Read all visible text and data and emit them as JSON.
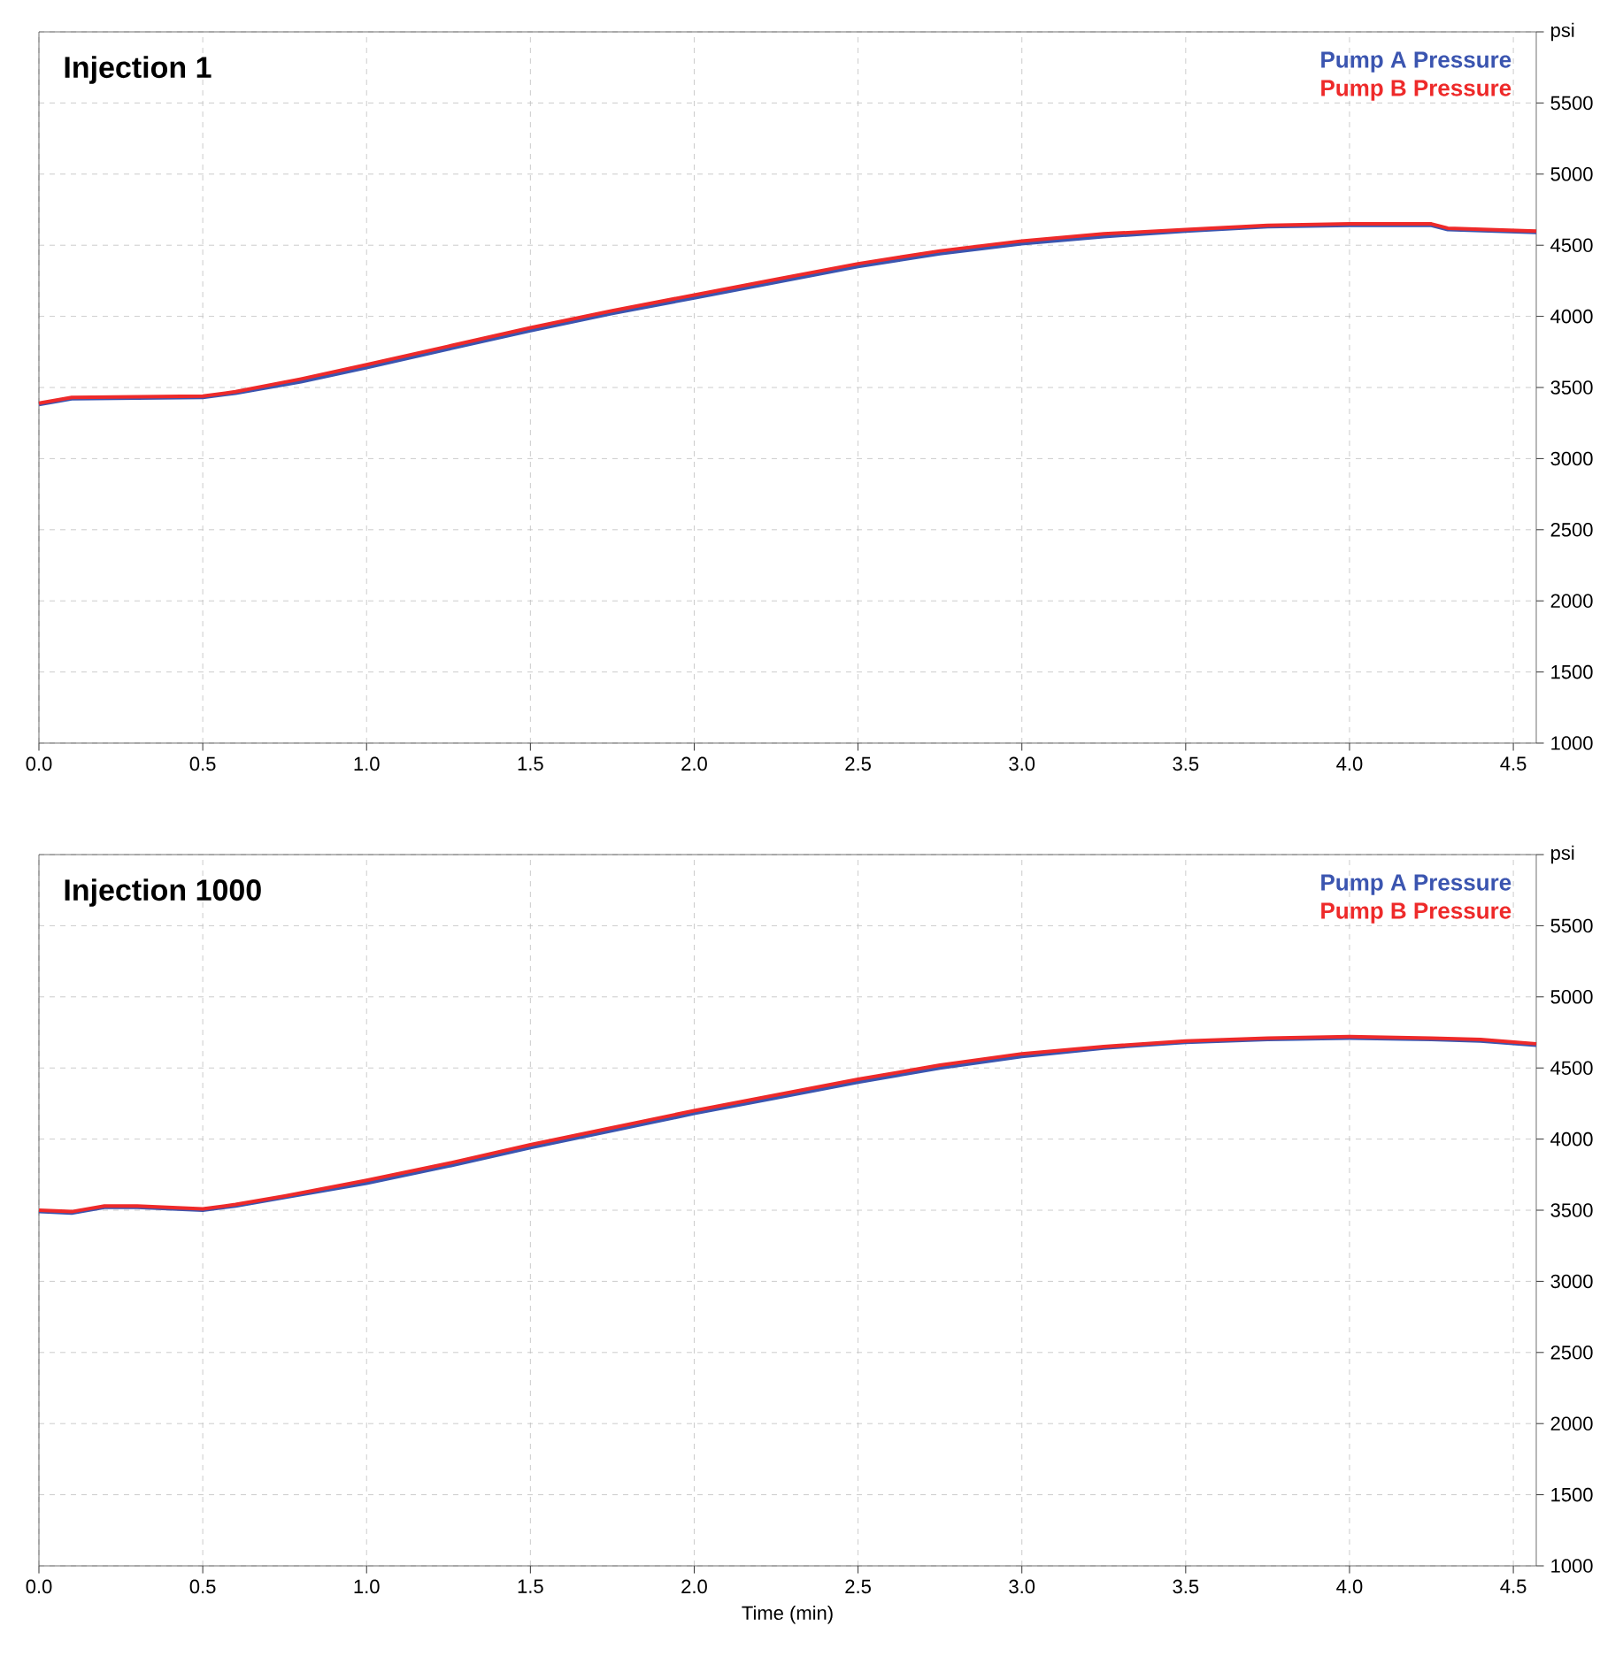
{
  "chart_data": [
    {
      "type": "line",
      "title": "Injection 1",
      "xlim": [
        0,
        4.57
      ],
      "xticks": [
        {
          "value": 0,
          "label": "0.0"
        },
        0.5,
        {
          "value": 1,
          "label": "1.0"
        },
        1.5,
        {
          "value": 2,
          "label": "2.0"
        },
        2.5,
        {
          "value": 3,
          "label": "3.0"
        },
        3.5,
        {
          "value": 4,
          "label": "4.0"
        },
        4.5
      ],
      "ylim": [
        1000,
        6000
      ],
      "yticks": [
        1000,
        1500,
        2000,
        2500,
        3000,
        3500,
        4000,
        4500,
        5000,
        5500,
        {
          "value": 6000,
          "label": "psi"
        }
      ],
      "grid": true,
      "legend": "top right",
      "x": [
        0,
        0.1,
        0.5,
        0.6,
        0.8,
        1.0,
        1.25,
        1.5,
        1.75,
        2.0,
        2.25,
        2.5,
        2.75,
        3.0,
        3.25,
        3.5,
        3.75,
        4.0,
        4.25,
        4.3,
        4.57
      ],
      "series": [
        {
          "name": "Pump A Pressure",
          "color": "#3b55b0",
          "values": [
            3380,
            3420,
            3430,
            3460,
            3540,
            3640,
            3770,
            3900,
            4020,
            4130,
            4240,
            4350,
            4440,
            4510,
            4560,
            4600,
            4630,
            4640,
            4640,
            4610,
            4590
          ]
        },
        {
          "name": "Pump B Pressure",
          "color": "#ee2a2a",
          "values": [
            3390,
            3430,
            3440,
            3470,
            3560,
            3660,
            3790,
            3920,
            4040,
            4150,
            4260,
            4370,
            4460,
            4530,
            4580,
            4610,
            4640,
            4650,
            4650,
            4620,
            4600
          ]
        }
      ]
    },
    {
      "type": "line",
      "title": "Injection 1000",
      "xlabel": "Time (min)",
      "xlim": [
        0,
        4.57
      ],
      "xticks": [
        {
          "value": 0,
          "label": "0.0"
        },
        0.5,
        {
          "value": 1,
          "label": "1.0"
        },
        1.5,
        {
          "value": 2,
          "label": "2.0"
        },
        2.5,
        {
          "value": 3,
          "label": "3.0"
        },
        3.5,
        {
          "value": 4,
          "label": "4.0"
        },
        4.5
      ],
      "ylim": [
        1000,
        6000
      ],
      "yticks": [
        1000,
        1500,
        2000,
        2500,
        3000,
        3500,
        4000,
        4500,
        5000,
        5500,
        {
          "value": 6000,
          "label": "psi"
        }
      ],
      "grid": true,
      "legend": "top right",
      "x": [
        0,
        0.1,
        0.2,
        0.3,
        0.5,
        0.6,
        0.75,
        1.0,
        1.25,
        1.5,
        1.75,
        2.0,
        2.25,
        2.5,
        2.75,
        3.0,
        3.25,
        3.5,
        3.75,
        4.0,
        4.25,
        4.4,
        4.57
      ],
      "series": [
        {
          "name": "Pump A Pressure",
          "color": "#3b55b0",
          "values": [
            3490,
            3480,
            3520,
            3520,
            3500,
            3530,
            3590,
            3690,
            3810,
            3940,
            4060,
            4180,
            4290,
            4400,
            4500,
            4580,
            4640,
            4680,
            4700,
            4710,
            4700,
            4690,
            4660
          ]
        },
        {
          "name": "Pump B Pressure",
          "color": "#ee2a2a",
          "values": [
            3500,
            3490,
            3530,
            3530,
            3510,
            3540,
            3600,
            3710,
            3830,
            3960,
            4080,
            4200,
            4310,
            4420,
            4520,
            4600,
            4650,
            4690,
            4710,
            4720,
            4710,
            4700,
            4670
          ]
        }
      ]
    }
  ]
}
